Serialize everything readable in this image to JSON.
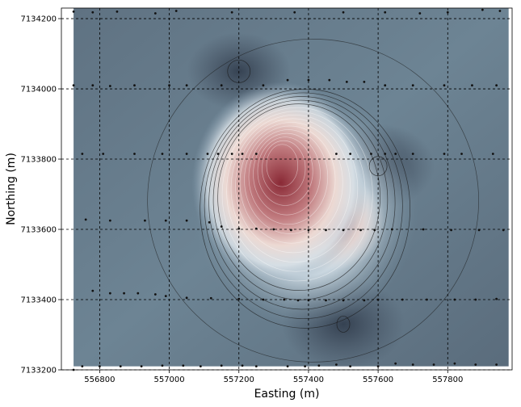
{
  "chart_data": {
    "type": "heatmap",
    "title": "",
    "xlabel": "Easting (m)",
    "ylabel": "Northing (m)",
    "xlim": [
      556690,
      557985
    ],
    "ylim": [
      7133200,
      7134230
    ],
    "xticks": [
      556800,
      557000,
      557200,
      557400,
      557600,
      557800
    ],
    "yticks": [
      7133200,
      7133400,
      7133600,
      7133800,
      7134000,
      7134200
    ],
    "grid": true,
    "grid_style": "dashed",
    "data_extent": {
      "x": [
        556725,
        557975
      ],
      "y": [
        7133210,
        7134230
      ]
    },
    "colormap": [
      "#3b4556",
      "#8fa6b8",
      "#f3f1ee",
      "#9c3d48"
    ],
    "field_peaks": [
      {
        "x": 557320,
        "y": 7133790,
        "value": 1.0
      },
      {
        "x": 557460,
        "y": 7133620,
        "value": 0.55
      }
    ],
    "field_lows": [
      {
        "x": 557500,
        "y": 7133330,
        "value": -0.3
      },
      {
        "x": 557600,
        "y": 7133780,
        "value": -0.25
      },
      {
        "x": 557200,
        "y": 7134050,
        "value": -0.2
      }
    ],
    "stations": [
      [
        556725,
        7134220
      ],
      [
        556780,
        7134218
      ],
      [
        556850,
        7134220
      ],
      [
        556960,
        7134215
      ],
      [
        557020,
        7134222
      ],
      [
        557180,
        7134218
      ],
      [
        557360,
        7134218
      ],
      [
        557500,
        7134218
      ],
      [
        557620,
        7134218
      ],
      [
        557720,
        7134215
      ],
      [
        557800,
        7134218
      ],
      [
        557900,
        7134225
      ],
      [
        557950,
        7134222
      ],
      [
        556725,
        7134010
      ],
      [
        556780,
        7134010
      ],
      [
        556830,
        7134008
      ],
      [
        556900,
        7134010
      ],
      [
        557000,
        7134010
      ],
      [
        557050,
        7134010
      ],
      [
        557150,
        7134010
      ],
      [
        557270,
        7134010
      ],
      [
        557340,
        7134025
      ],
      [
        557400,
        7134025
      ],
      [
        557460,
        7134025
      ],
      [
        557510,
        7134020
      ],
      [
        557560,
        7134020
      ],
      [
        557620,
        7134010
      ],
      [
        557700,
        7134010
      ],
      [
        557790,
        7134010
      ],
      [
        557870,
        7134010
      ],
      [
        557940,
        7134010
      ],
      [
        556750,
        7133815
      ],
      [
        556810,
        7133815
      ],
      [
        556900,
        7133815
      ],
      [
        556980,
        7133815
      ],
      [
        557050,
        7133815
      ],
      [
        557110,
        7133815
      ],
      [
        557140,
        7133815
      ],
      [
        557180,
        7133815
      ],
      [
        557210,
        7133815
      ],
      [
        557250,
        7133815
      ],
      [
        557480,
        7133815
      ],
      [
        557520,
        7133815
      ],
      [
        557580,
        7133815
      ],
      [
        557620,
        7133815
      ],
      [
        557650,
        7133815
      ],
      [
        557700,
        7133815
      ],
      [
        557790,
        7133815
      ],
      [
        557840,
        7133815
      ],
      [
        557930,
        7133815
      ],
      [
        556760,
        7133628
      ],
      [
        556830,
        7133625
      ],
      [
        556930,
        7133625
      ],
      [
        556990,
        7133625
      ],
      [
        557050,
        7133625
      ],
      [
        557115,
        7133620
      ],
      [
        557150,
        7133608
      ],
      [
        557200,
        7133602
      ],
      [
        557250,
        7133602
      ],
      [
        557300,
        7133600
      ],
      [
        557350,
        7133598
      ],
      [
        557400,
        7133598
      ],
      [
        557450,
        7133598
      ],
      [
        557500,
        7133598
      ],
      [
        557550,
        7133598
      ],
      [
        557590,
        7133598
      ],
      [
        557640,
        7133600
      ],
      [
        557730,
        7133600
      ],
      [
        557810,
        7133598
      ],
      [
        557890,
        7133598
      ],
      [
        557960,
        7133598
      ],
      [
        556780,
        7133425
      ],
      [
        556830,
        7133418
      ],
      [
        556870,
        7133418
      ],
      [
        556910,
        7133418
      ],
      [
        556960,
        7133415
      ],
      [
        556990,
        7133410
      ],
      [
        557050,
        7133405
      ],
      [
        557120,
        7133404
      ],
      [
        557200,
        7133402
      ],
      [
        557270,
        7133400
      ],
      [
        557330,
        7133400
      ],
      [
        557370,
        7133398
      ],
      [
        557400,
        7133398
      ],
      [
        557450,
        7133398
      ],
      [
        557500,
        7133398
      ],
      [
        557560,
        7133398
      ],
      [
        557600,
        7133400
      ],
      [
        557670,
        7133400
      ],
      [
        557740,
        7133400
      ],
      [
        557820,
        7133400
      ],
      [
        557880,
        7133400
      ],
      [
        557940,
        7133402
      ],
      [
        556725,
        7133200
      ],
      [
        556750,
        7133210
      ],
      [
        556800,
        7133210
      ],
      [
        556860,
        7133210
      ],
      [
        556920,
        7133210
      ],
      [
        556980,
        7133212
      ],
      [
        557040,
        7133212
      ],
      [
        557090,
        7133210
      ],
      [
        557150,
        7133212
      ],
      [
        557210,
        7133212
      ],
      [
        557250,
        7133210
      ],
      [
        557340,
        7133210
      ],
      [
        557390,
        7133210
      ],
      [
        557430,
        7133212
      ],
      [
        557480,
        7133215
      ],
      [
        557520,
        7133210
      ],
      [
        557600,
        7133210
      ],
      [
        557650,
        7133218
      ],
      [
        557700,
        7133215
      ],
      [
        557760,
        7133215
      ],
      [
        557820,
        7133218
      ],
      [
        557880,
        7133215
      ],
      [
        557940,
        7133215
      ]
    ]
  }
}
